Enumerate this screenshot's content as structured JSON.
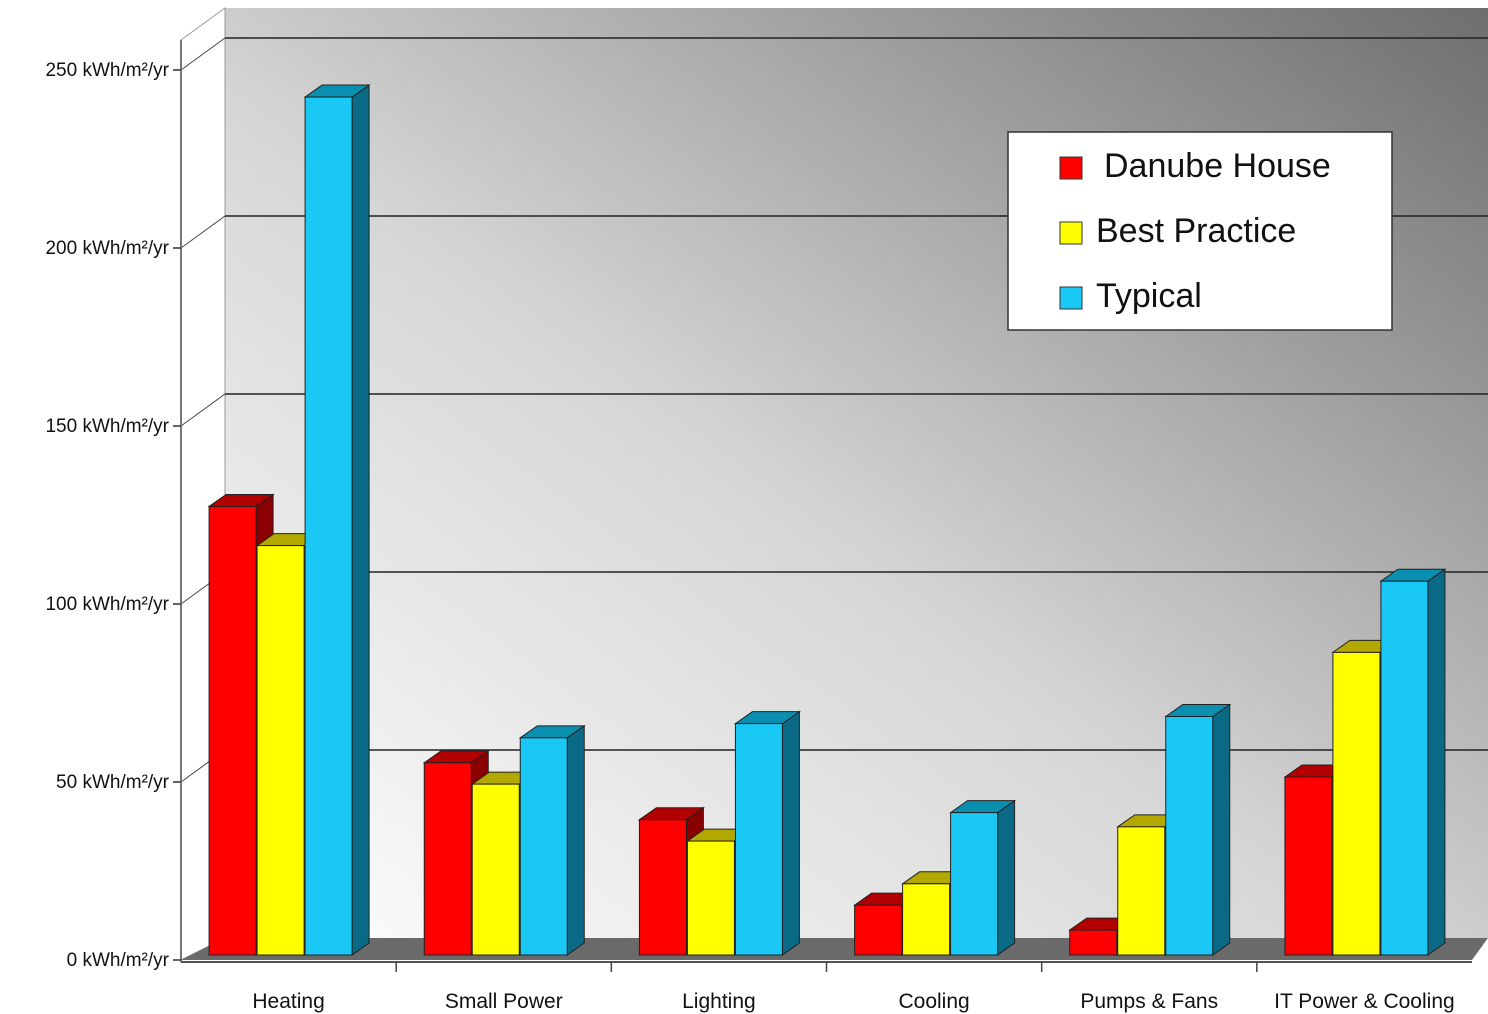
{
  "chart_data": {
    "type": "bar",
    "title": "",
    "xlabel": "",
    "ylabel": "",
    "ylim": [
      0,
      250
    ],
    "yticks": [
      "0 kWh/m²/yr",
      "50 kWh/m²/yr",
      "100 kWh/m²/yr",
      "150 kWh/m²/yr",
      "200 kWh/m²/yr",
      "250 kWh/m²/yr"
    ],
    "categories": [
      "Heating",
      "Small Power",
      "Lighting",
      "Cooling",
      "Pumps & Fans",
      "IT Power & Cooling"
    ],
    "series": [
      {
        "name": "Danube House",
        "values": [
          126,
          54,
          38,
          14,
          7,
          50
        ]
      },
      {
        "name": "Best Practice",
        "values": [
          115,
          48,
          32,
          20,
          36,
          85
        ]
      },
      {
        "name": "Typical",
        "values": [
          241,
          61,
          65,
          40,
          67,
          105
        ]
      }
    ],
    "grid": true,
    "legend_position": "top-right",
    "colors": {
      "Danube House": {
        "front": "#ff0000",
        "top": "#b20000",
        "side": "#8a0000"
      },
      "Best Practice": {
        "front": "#ffff00",
        "top": "#b3a800",
        "side": "#8f8a00"
      },
      "Typical": {
        "front": "#19c8f5",
        "top": "#0b8fb0",
        "side": "#0a6985"
      }
    }
  }
}
